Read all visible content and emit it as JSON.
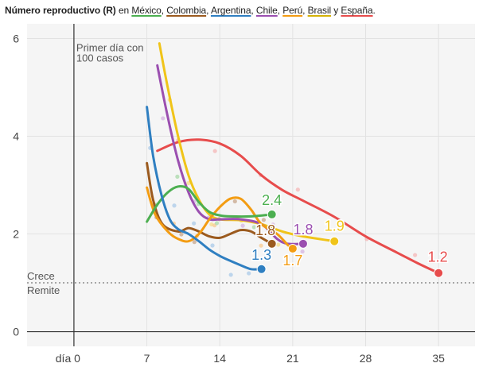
{
  "header": {
    "title_bold": "Número reproductivo (R)",
    "title_rest": "en",
    "and_word": "y",
    "countries": [
      {
        "name": "México",
        "color": "#4caf50",
        "suffix": ","
      },
      {
        "name": "Colombia",
        "color": "#9b5a1e",
        "suffix": ","
      },
      {
        "name": "Argentina",
        "color": "#2f7fc1",
        "suffix": ","
      },
      {
        "name": "Chile",
        "color": "#9b4fb0",
        "suffix": ","
      },
      {
        "name": "Perú",
        "color": "#f39c12",
        "suffix": ","
      },
      {
        "name": "Brasil",
        "color": "#d4b106",
        "suffix": ""
      },
      {
        "name": "España",
        "color": "#e74c4c",
        "suffix": "."
      }
    ]
  },
  "chart_data": {
    "type": "line",
    "title": "Número reproductivo (R) en México, Colombia, Argentina, Chile, Perú, Brasil y España.",
    "xlim": [
      -4.5,
      38.5
    ],
    "ylim": [
      -0.3,
      6.3
    ],
    "x_ticks": [
      0,
      7,
      14,
      21,
      28,
      35
    ],
    "x_tick_labels": [
      "día 0",
      "7",
      "14",
      "21",
      "28",
      "35"
    ],
    "y_ticks": [
      0,
      2,
      4,
      6
    ],
    "y_tick_labels": [
      "0",
      "2",
      "4",
      "6"
    ],
    "grid": true,
    "vline_label": [
      "Primer día con",
      "100 casos"
    ],
    "threshold": {
      "y": 1,
      "label_above": "Crece",
      "label_below": "Remite"
    },
    "series": [
      {
        "name": "España",
        "color": "#e74c4c",
        "end_label": "1.2",
        "points": [
          [
            8,
            3.7
          ],
          [
            10,
            3.88
          ],
          [
            12,
            3.93
          ],
          [
            14,
            3.85
          ],
          [
            16,
            3.6
          ],
          [
            18,
            3.2
          ],
          [
            20,
            2.9
          ],
          [
            22,
            2.68
          ],
          [
            25,
            2.35
          ],
          [
            28,
            1.95
          ],
          [
            31,
            1.62
          ],
          [
            33,
            1.4
          ],
          [
            35,
            1.2
          ]
        ]
      },
      {
        "name": "Brasil",
        "color": "#f0c419",
        "end_label": "1.9",
        "points": [
          [
            8.2,
            5.9
          ],
          [
            9,
            5.0
          ],
          [
            10,
            4.0
          ],
          [
            11,
            3.2
          ],
          [
            12,
            2.7
          ],
          [
            13,
            2.4
          ],
          [
            14,
            2.3
          ],
          [
            16,
            2.28
          ],
          [
            18,
            2.2
          ],
          [
            20,
            2.05
          ],
          [
            22,
            1.95
          ],
          [
            25,
            1.85
          ]
        ]
      },
      {
        "name": "Chile",
        "color": "#9b4fb0",
        "end_label": "1.8",
        "points": [
          [
            8,
            5.45
          ],
          [
            9,
            4.4
          ],
          [
            10,
            3.5
          ],
          [
            11,
            2.85
          ],
          [
            12,
            2.45
          ],
          [
            13,
            2.3
          ],
          [
            14,
            2.3
          ],
          [
            16,
            2.3
          ],
          [
            18,
            2.2
          ],
          [
            19.5,
            1.9
          ],
          [
            20.5,
            1.8
          ],
          [
            22,
            1.8
          ]
        ]
      },
      {
        "name": "Colombia",
        "color": "#9b5a1e",
        "end_label": "1.8",
        "points": [
          [
            7,
            3.45
          ],
          [
            7.6,
            2.7
          ],
          [
            8.5,
            2.2
          ],
          [
            10,
            2.05
          ],
          [
            11,
            2.12
          ],
          [
            12,
            2.05
          ],
          [
            13,
            1.95
          ],
          [
            14,
            1.92
          ],
          [
            15,
            2.0
          ],
          [
            16,
            2.08
          ],
          [
            17,
            2.05
          ],
          [
            18,
            1.92
          ],
          [
            19,
            1.8
          ]
        ]
      },
      {
        "name": "Perú",
        "color": "#f39c12",
        "end_label": "1.7",
        "points": [
          [
            7,
            2.95
          ],
          [
            7.8,
            2.4
          ],
          [
            9,
            2.05
          ],
          [
            10,
            1.9
          ],
          [
            11,
            1.85
          ],
          [
            12,
            2.0
          ],
          [
            13,
            2.3
          ],
          [
            14,
            2.55
          ],
          [
            15,
            2.72
          ],
          [
            16,
            2.72
          ],
          [
            17,
            2.5
          ],
          [
            18,
            2.2
          ],
          [
            19.5,
            2.0
          ],
          [
            20.5,
            1.78
          ],
          [
            21,
            1.7
          ]
        ]
      },
      {
        "name": "México",
        "color": "#4caf50",
        "end_label": "2.4",
        "points": [
          [
            7,
            2.25
          ],
          [
            8,
            2.6
          ],
          [
            9,
            2.85
          ],
          [
            10,
            2.97
          ],
          [
            11,
            2.92
          ],
          [
            12,
            2.65
          ],
          [
            13,
            2.45
          ],
          [
            14,
            2.38
          ],
          [
            15,
            2.36
          ],
          [
            17,
            2.36
          ],
          [
            19,
            2.4
          ]
        ]
      },
      {
        "name": "Argentina",
        "color": "#2f7fc1",
        "end_label": "1.3",
        "points": [
          [
            7,
            4.6
          ],
          [
            7.6,
            3.6
          ],
          [
            8.4,
            2.8
          ],
          [
            9.2,
            2.3
          ],
          [
            10,
            2.1
          ],
          [
            11,
            2.0
          ],
          [
            12,
            1.85
          ],
          [
            13,
            1.68
          ],
          [
            14,
            1.55
          ],
          [
            15,
            1.45
          ],
          [
            16,
            1.36
          ],
          [
            17,
            1.28
          ],
          [
            18,
            1.28
          ]
        ]
      }
    ],
    "scatter_colors": [
      "#f4b6b6",
      "#f6dc88",
      "#d4b3e0",
      "#f8c98f",
      "#c7a58b",
      "#a8d8a8",
      "#a9c9e8"
    ]
  }
}
